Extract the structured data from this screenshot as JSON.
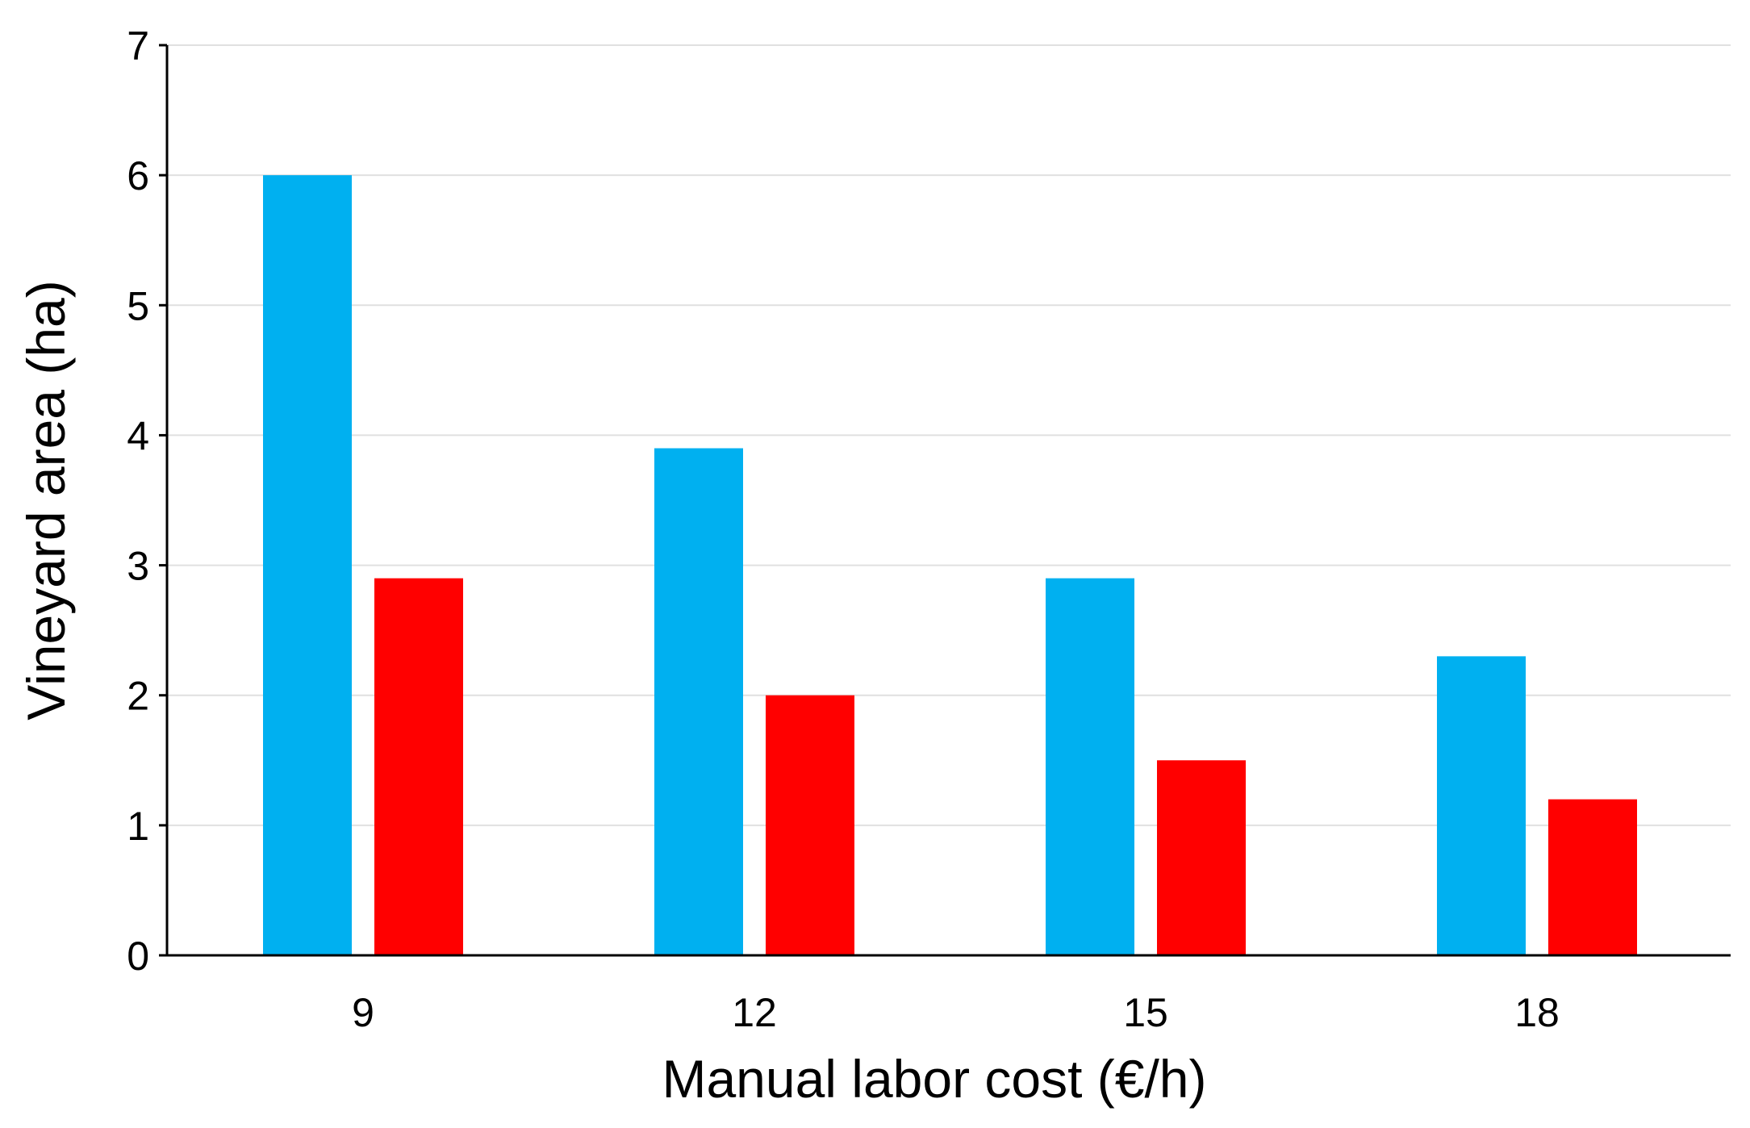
{
  "chart_data": {
    "type": "bar",
    "x_label": "Manual labor cost (€/h)",
    "y_label": "Vineyard area (ha)",
    "categories": [
      "9",
      "12",
      "15",
      "18"
    ],
    "series": [
      {
        "color": "#00b0f0",
        "values": [
          6.0,
          3.9,
          2.9,
          2.3
        ]
      },
      {
        "color": "#ff0000",
        "values": [
          2.9,
          2.0,
          1.5,
          1.2
        ]
      }
    ],
    "ylim": [
      0,
      7
    ],
    "yticks": [
      0,
      1,
      2,
      3,
      4,
      5,
      6,
      7
    ],
    "grid": true
  }
}
